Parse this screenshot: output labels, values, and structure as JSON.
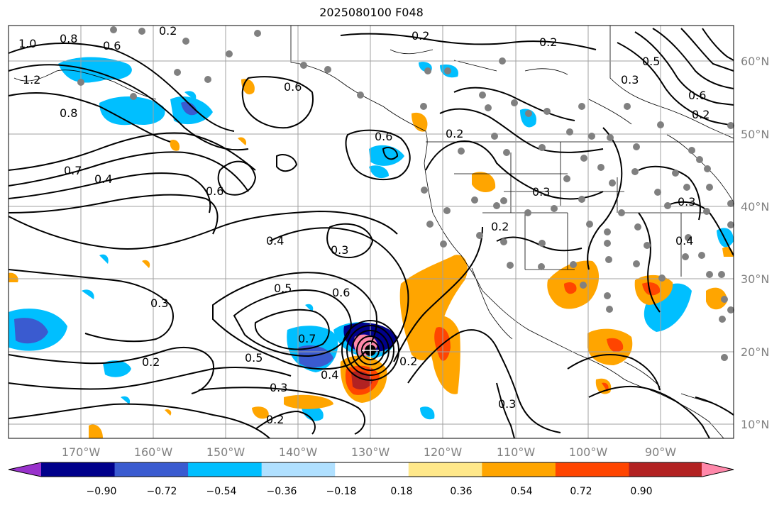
{
  "title": "2025080100 F048",
  "map": {
    "lon_labels": [
      "170°W",
      "160°W",
      "150°W",
      "140°W",
      "130°W",
      "120°W",
      "110°W",
      "100°W",
      "90°W"
    ],
    "lat_labels": [
      "60°N",
      "50°N",
      "40°N",
      "30°N",
      "20°N",
      "10°N"
    ],
    "contour_labels": [
      "1.0",
      "0.8",
      "0.6",
      "0.2",
      "1.2",
      "0.8",
      "0.6",
      "0.7",
      "0.4",
      "0.6",
      "0.6",
      "0.4",
      "0.3",
      "0.5",
      "0.6",
      "0.7",
      "0.3",
      "0.2",
      "0.5",
      "0.4",
      "0.2",
      "0.3",
      "0.2",
      "0.2",
      "0.2",
      "0.3",
      "0.2",
      "0.3",
      "0.4",
      "0.5",
      "0.3",
      "0.6",
      "0.2",
      "0.3",
      "0.2"
    ],
    "stations_note": ""
  },
  "colorbar": {
    "tick_labels": [
      "−0.90",
      "−0.72",
      "−0.54",
      "−0.36",
      "−0.18",
      "0.18",
      "0.36",
      "0.54",
      "0.72",
      "0.90"
    ],
    "colors": [
      "#9932cc",
      "#00008b",
      "#3a5bd0",
      "#00bfff",
      "#b0e0ff",
      "#ffffff",
      "#ffe88a",
      "#ffa500",
      "#ff4500",
      "#b22222",
      "#ff88aa"
    ]
  },
  "colors": {
    "land_border": "#000000",
    "grid": "#a0a0a0",
    "station": "#808080"
  }
}
